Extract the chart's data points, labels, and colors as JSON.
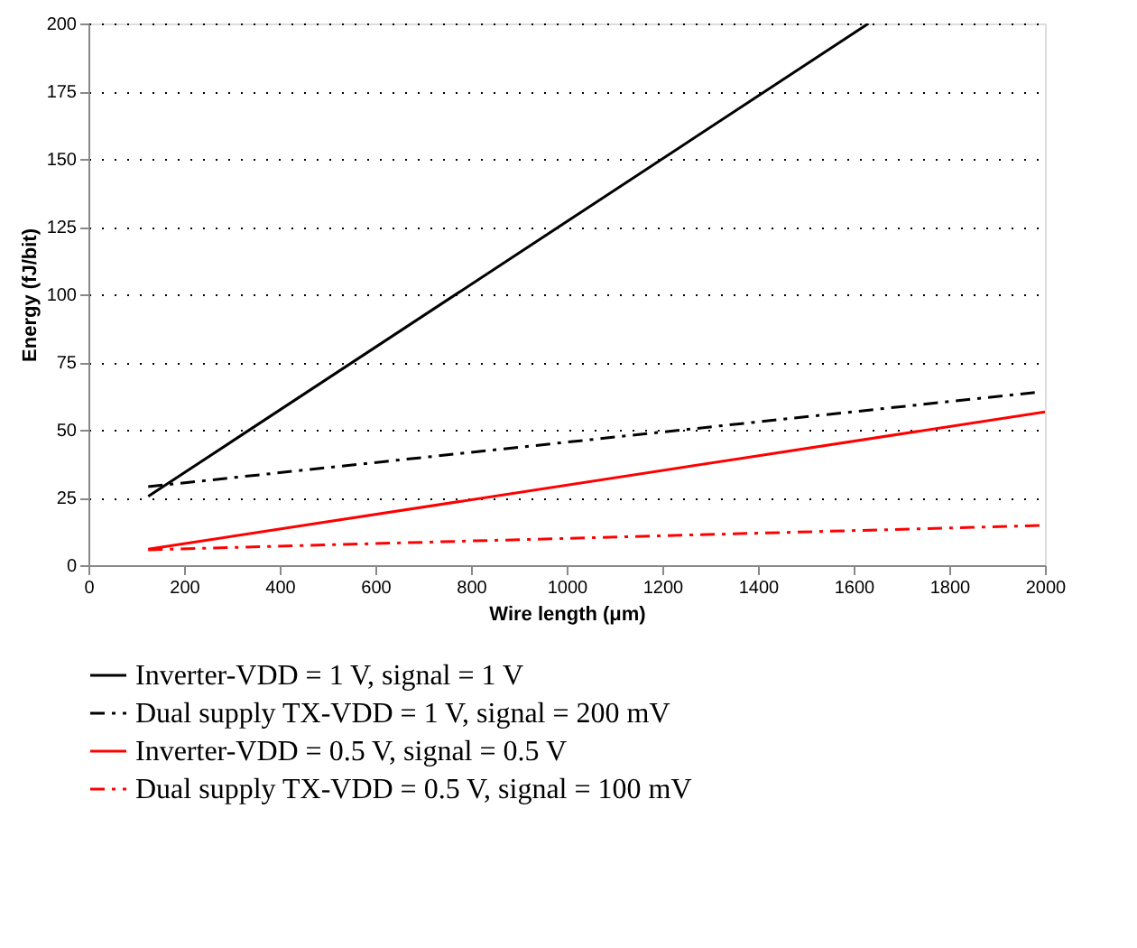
{
  "chart_data": {
    "type": "line",
    "xlabel": "Wire length (μm)",
    "ylabel": "Energy (fJ/bit)",
    "xlim": [
      0,
      2000
    ],
    "xticks": [
      0,
      200,
      400,
      600,
      800,
      1000,
      1200,
      1400,
      1600,
      1800,
      2000
    ],
    "ylim": [
      0,
      200
    ],
    "yticks": [
      0,
      25,
      50,
      75,
      100,
      125,
      150,
      175,
      200
    ],
    "grid": "y",
    "legend": "bottom",
    "marker": "none",
    "series": [
      {
        "name": "Inverter-VDD = 1 V, signal = 1 V",
        "color": "#000000",
        "line_style": "solid",
        "x": [
          125,
          1631
        ],
        "values": [
          25.4,
          200
        ]
      },
      {
        "name": "Dual supply TX-VDD = 1 V, signal = 200 mV",
        "color": "#000000",
        "line_style": "dashdot",
        "x": [
          125,
          1986
        ],
        "values": [
          29,
          63.9
        ]
      },
      {
        "name": "Inverter-VDD = 0.5 V, signal = 0.5 V",
        "color": "#ff0000",
        "line_style": "solid",
        "x": [
          125,
          2000
        ],
        "values": [
          5.9,
          56.6
        ]
      },
      {
        "name": "Dual supply TX-VDD = 0.5 V, signal = 100 mV",
        "color": "#ff0000",
        "line_style": "dashdot",
        "x": [
          125,
          2000
        ],
        "values": [
          5.7,
          14.7
        ]
      }
    ]
  }
}
